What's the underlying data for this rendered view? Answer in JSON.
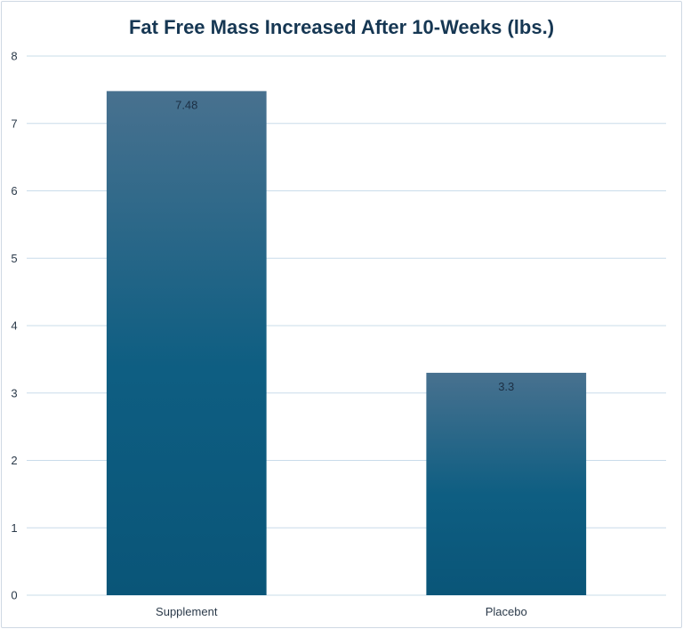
{
  "chart_data": {
    "type": "bar",
    "title": "Fat Free Mass Increased After 10-Weeks (lbs.)",
    "categories": [
      "Supplement",
      "Placebo"
    ],
    "values": [
      7.48,
      3.3
    ],
    "data_labels": [
      "7.48",
      "3.3"
    ],
    "ylim": [
      0,
      8
    ],
    "yticks": [
      0,
      1,
      2,
      3,
      4,
      5,
      6,
      7,
      8
    ],
    "xlabel": "",
    "ylabel": "",
    "grid": true,
    "legend": "none",
    "colors": {
      "bar_top": "#48718f",
      "bar_bottom": "#0a5578",
      "grid": "#c9dcea",
      "title": "#163753"
    }
  }
}
